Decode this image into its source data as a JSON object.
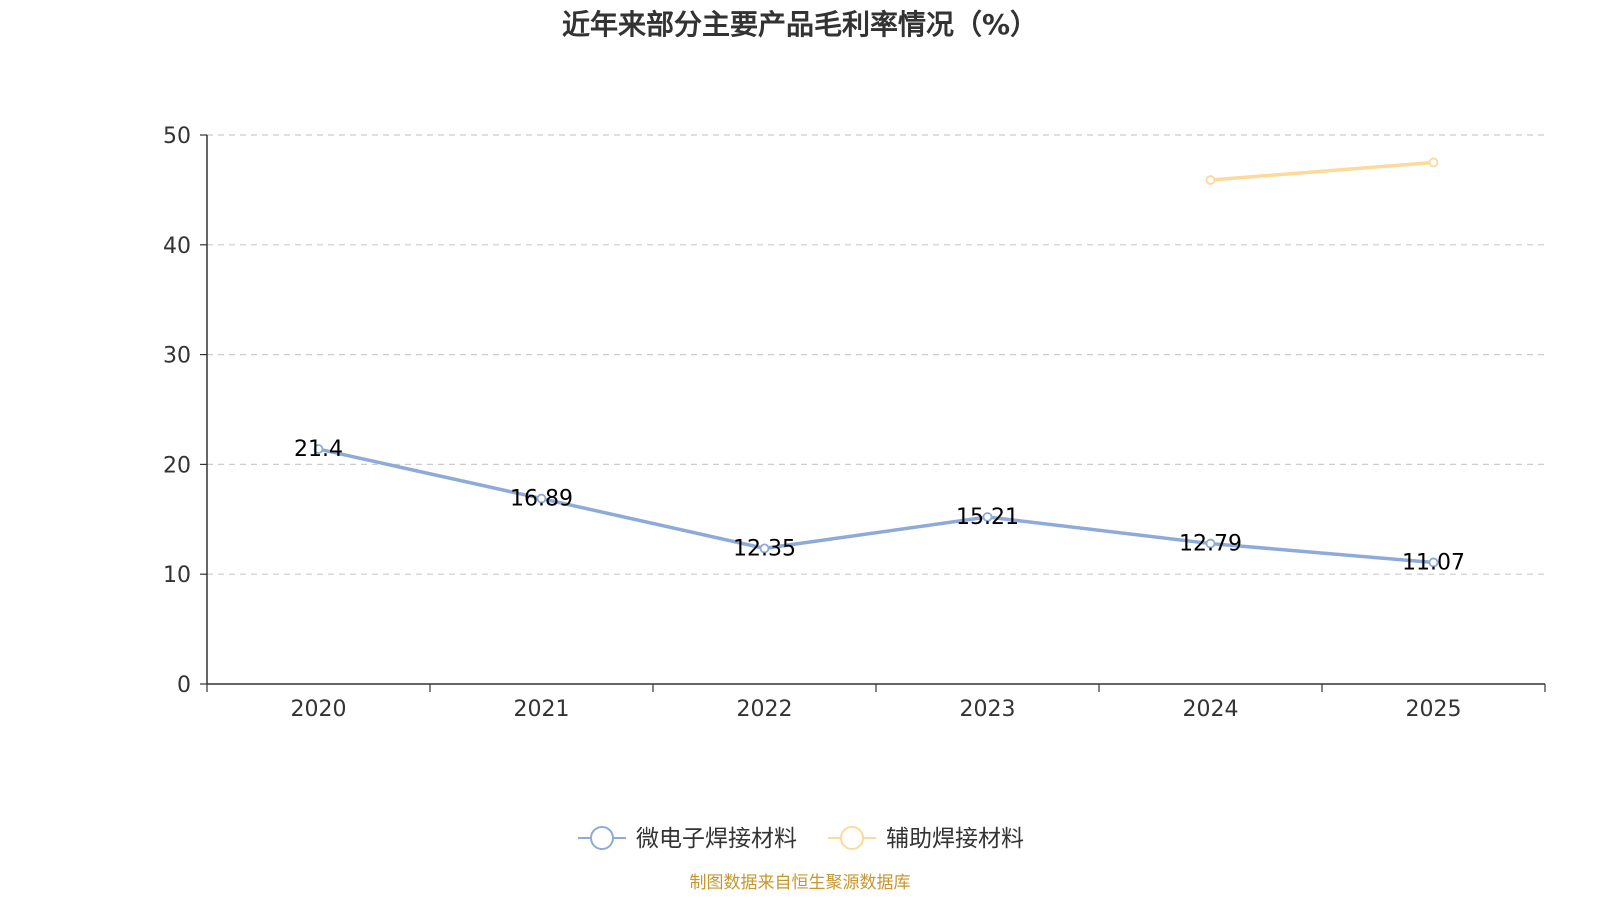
{
  "chart_data": {
    "type": "line",
    "title": "近年来部分主要产品毛利率情况（%）",
    "categories": [
      "2020",
      "2021",
      "2022",
      "2023",
      "2024",
      "2025"
    ],
    "ylim": [
      0,
      50
    ],
    "yticks": [
      0,
      10,
      20,
      30,
      40,
      50
    ],
    "grid": true,
    "legend_position": "bottom",
    "series": [
      {
        "name": "微电子焊接材料",
        "color": "#8eaad8",
        "values": [
          21.4,
          16.89,
          12.35,
          15.21,
          12.79,
          11.07
        ],
        "labels": [
          "21.4",
          "16.89",
          "12.35",
          "15.21",
          "12.79",
          "11.07"
        ],
        "show_labels": true
      },
      {
        "name": "辅助焊接材料",
        "color": "#fdd99b",
        "values": [
          null,
          null,
          null,
          null,
          45.9,
          47.5
        ],
        "labels": [],
        "show_labels": false
      }
    ],
    "source": "制图数据来自恒生聚源数据库"
  }
}
